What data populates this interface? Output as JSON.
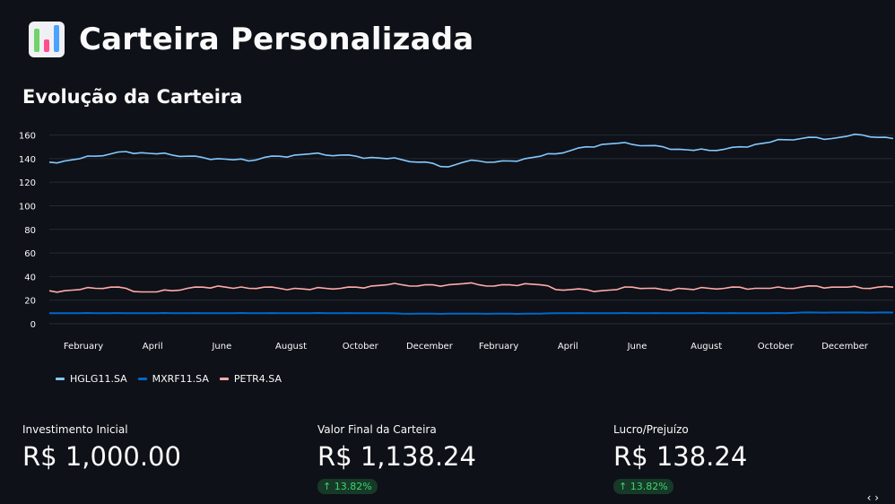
{
  "header": {
    "title": "Carteira Personalizada",
    "icon": "bar-chart-icon"
  },
  "section": {
    "title": "Evolução da Carteira"
  },
  "chart_data": {
    "type": "line",
    "y_ticks": [
      "0",
      "20",
      "40",
      "60",
      "80",
      "100",
      "120",
      "140",
      "160"
    ],
    "x_ticks": [
      "February",
      "April",
      "June",
      "August",
      "October",
      "December",
      "February",
      "April",
      "June",
      "August",
      "October",
      "December"
    ],
    "ylim": [
      0,
      165
    ],
    "grid": true,
    "legend_position": "bottom-left",
    "series": [
      {
        "name": "HGLG11.SA",
        "color": "#83c9ff",
        "values": [
          137,
          138,
          140,
          142,
          144,
          146,
          145,
          144,
          143,
          142,
          141,
          140,
          139,
          138,
          141,
          142,
          143,
          144,
          143,
          143,
          142,
          141,
          140,
          139,
          137,
          136,
          133,
          137,
          138,
          137,
          138,
          140,
          142,
          144,
          147,
          150,
          152,
          153,
          152,
          151,
          150,
          148,
          147,
          147,
          148,
          150,
          152,
          154,
          156,
          157,
          158,
          157,
          159,
          160,
          158,
          157
        ]
      },
      {
        "name": "MXRF11.SA",
        "color": "#0068c9",
        "values": [
          9,
          9,
          9,
          9,
          9,
          9,
          9,
          9,
          9,
          9,
          9,
          9,
          9,
          9,
          9,
          9,
          9,
          9,
          9,
          9,
          9,
          9,
          9,
          8.5,
          8.5,
          8.5,
          8.5,
          8.5,
          8.5,
          8.5,
          8.5,
          8.5,
          8.5,
          9,
          9,
          9,
          9,
          9,
          9,
          9,
          9,
          9,
          9,
          9,
          9,
          9,
          9,
          9,
          9,
          9.5,
          9.5,
          9.5,
          9.5,
          9.5,
          9.5,
          9.5
        ]
      },
      {
        "name": "PETR4.SA",
        "color": "#ffabab",
        "values": [
          28,
          28,
          29,
          30,
          31,
          30,
          27,
          27,
          28,
          30,
          31,
          32,
          30,
          30,
          31,
          30,
          30,
          29,
          30,
          30,
          31,
          32,
          33,
          33,
          32,
          33,
          33,
          34,
          33,
          32,
          33,
          34,
          33,
          29,
          29,
          29,
          28,
          29,
          31,
          30,
          29,
          30,
          29,
          30,
          30,
          31,
          30,
          30,
          30,
          31,
          32,
          31,
          31,
          30,
          31,
          31
        ]
      }
    ]
  },
  "metrics": [
    {
      "label": "Investimento Inicial",
      "value": "R$ 1,000.00",
      "delta": ""
    },
    {
      "label": "Valor Final da Carteira",
      "value": "R$ 1,138.24",
      "delta": "↑ 13.82%"
    },
    {
      "label": "Lucro/Prejuízo",
      "value": "R$ 138.24",
      "delta": "↑ 13.82%"
    }
  ],
  "nav": {
    "corner": "‹ ›"
  }
}
